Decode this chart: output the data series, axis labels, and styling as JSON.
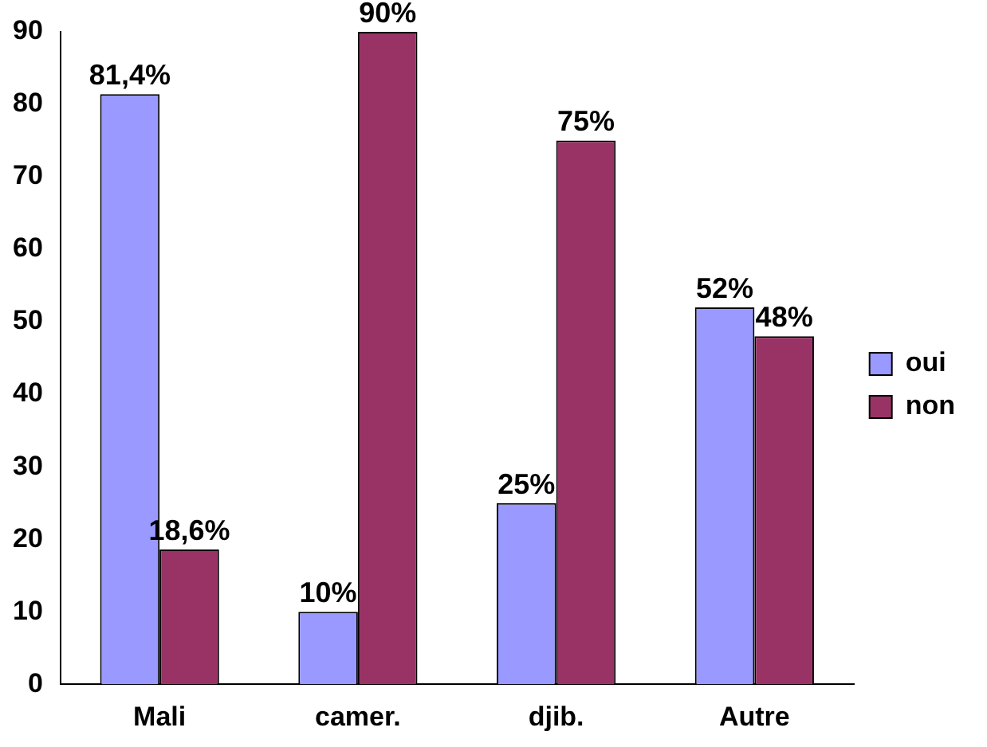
{
  "chart_data": {
    "type": "bar",
    "categories": [
      "Mali",
      "camer.",
      "djib.",
      "Autre"
    ],
    "series": [
      {
        "name": "oui",
        "color": "#9999ff",
        "values": [
          81.4,
          10,
          25,
          52
        ],
        "value_labels": [
          "81,4%",
          "10%",
          "25%",
          "52%"
        ]
      },
      {
        "name": "non",
        "color": "#993366",
        "values": [
          18.6,
          90,
          75,
          48
        ],
        "value_labels": [
          "18,6%",
          "90%",
          "75%",
          "48%"
        ]
      }
    ],
    "ylim": [
      0,
      90
    ],
    "yticks": [
      0,
      10,
      20,
      30,
      40,
      50,
      60,
      70,
      80,
      90
    ],
    "grid": false,
    "legend": "right"
  }
}
